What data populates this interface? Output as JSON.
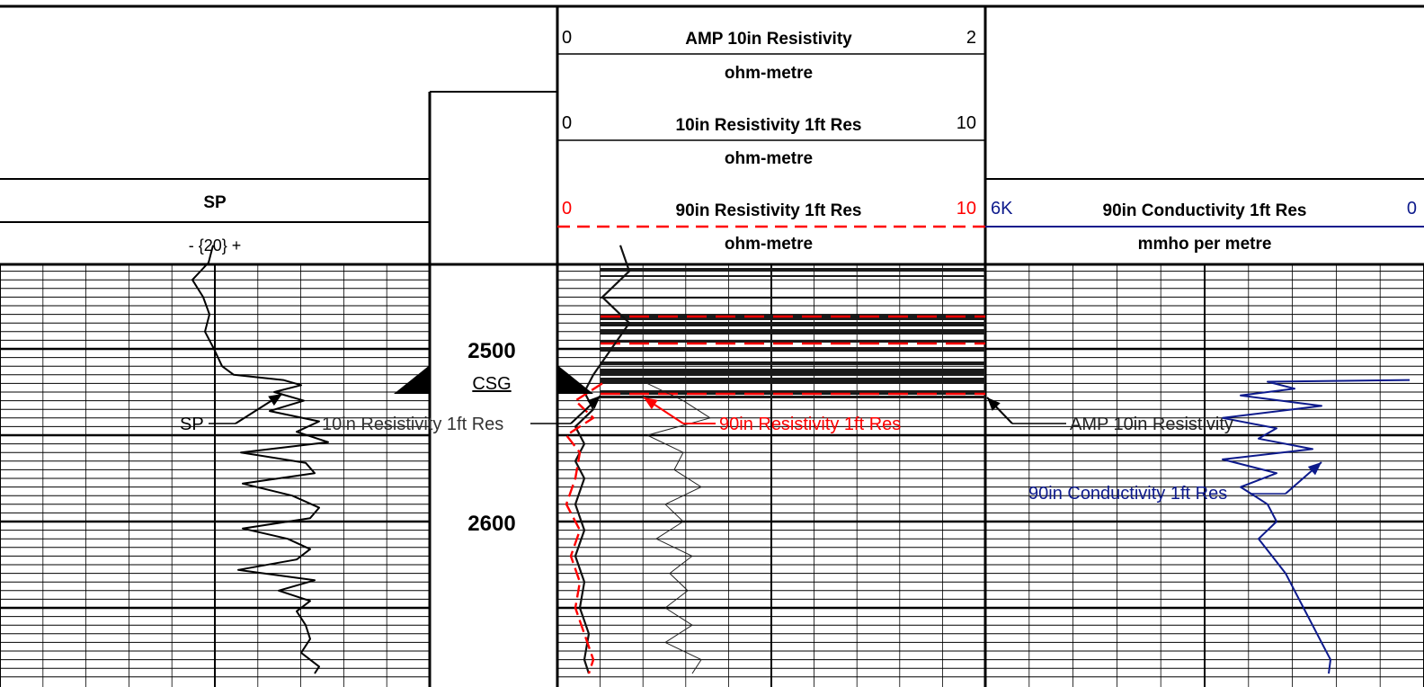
{
  "colors": {
    "black": "#000000",
    "red": "#ff0000",
    "blue": "#0d1a8c",
    "grid": "#000000"
  },
  "headers": {
    "amp10": {
      "name": "AMP 10in Resistivity",
      "left": "0",
      "right": "2",
      "unit": "ohm-metre"
    },
    "res10": {
      "name": "10in Resistivity 1ft Res",
      "left": "0",
      "right": "10",
      "unit": "ohm-metre"
    },
    "res90": {
      "name": "90in Resistivity 1ft Res",
      "left": "0",
      "right": "10",
      "unit": "ohm-metre"
    },
    "sp": {
      "name": "SP",
      "scale": "- {20} +"
    },
    "cond90": {
      "name": "90in Conductivity 1ft Res",
      "left": "6K",
      "right": "0",
      "unit": "mmho per metre"
    }
  },
  "depth_track": {
    "labels": [
      "2500",
      "2600"
    ],
    "casing": "CSG"
  },
  "annotations": {
    "sp": "SP",
    "res10": "10in Resistivity 1ft Res",
    "res90": "90in Resistivity 1ft Res",
    "amp10": "AMP 10in Resistivity",
    "cond90": "90in Conductivity 1ft Res"
  },
  "chart_data": {
    "type": "line",
    "depth_range": [
      2440,
      2688
    ],
    "depth_ticks": [
      2500,
      2600
    ],
    "series": [
      {
        "name": "SP",
        "scale": "- {20} +",
        "values": [
          [
            2440,
            237
          ],
          [
            2450,
            232
          ],
          [
            2460,
            214
          ],
          [
            2470,
            226
          ],
          [
            2480,
            233
          ],
          [
            2490,
            228
          ],
          [
            2500,
            238
          ],
          [
            2510,
            247
          ],
          [
            2515,
            260
          ],
          [
            2518,
            315
          ],
          [
            2521,
            335
          ],
          [
            2525,
            305
          ],
          [
            2530,
            338
          ],
          [
            2536,
            300
          ],
          [
            2542,
            355
          ],
          [
            2548,
            330
          ],
          [
            2554,
            365
          ],
          [
            2560,
            268
          ],
          [
            2566,
            340
          ],
          [
            2572,
            350
          ],
          [
            2578,
            270
          ],
          [
            2585,
            325
          ],
          [
            2592,
            355
          ],
          [
            2598,
            345
          ],
          [
            2604,
            270
          ],
          [
            2610,
            320
          ],
          [
            2616,
            345
          ],
          [
            2622,
            330
          ],
          [
            2628,
            265
          ],
          [
            2634,
            350
          ],
          [
            2640,
            310
          ],
          [
            2646,
            345
          ],
          [
            2652,
            330
          ],
          [
            2660,
            340
          ],
          [
            2668,
            345
          ],
          [
            2676,
            335
          ],
          [
            2684,
            355
          ],
          [
            2688,
            350
          ]
        ]
      },
      {
        "name": "10in Resistivity 1ft Res",
        "left": 0,
        "right": 10,
        "values": [
          [
            2440,
            690
          ],
          [
            2455,
            700
          ],
          [
            2470,
            670
          ],
          [
            2485,
            700
          ],
          [
            2500,
            680
          ],
          [
            2515,
            660
          ],
          [
            2525,
            650
          ],
          [
            2535,
            660
          ],
          [
            2545,
            640
          ],
          [
            2555,
            650
          ],
          [
            2565,
            640
          ],
          [
            2575,
            650
          ],
          [
            2590,
            640
          ],
          [
            2605,
            650
          ],
          [
            2620,
            640
          ],
          [
            2635,
            650
          ],
          [
            2650,
            645
          ],
          [
            2665,
            655
          ],
          [
            2680,
            650
          ],
          [
            2688,
            655
          ]
        ]
      },
      {
        "name": "90in Resistivity 1ft Res",
        "left": 0,
        "right": 10,
        "values": [
          [
            2520,
            670
          ],
          [
            2530,
            640
          ],
          [
            2540,
            660
          ],
          [
            2550,
            630
          ],
          [
            2560,
            645
          ],
          [
            2575,
            640
          ],
          [
            2590,
            630
          ],
          [
            2605,
            645
          ],
          [
            2620,
            635
          ],
          [
            2635,
            645
          ],
          [
            2650,
            640
          ],
          [
            2665,
            650
          ],
          [
            2680,
            660
          ],
          [
            2688,
            655
          ]
        ]
      },
      {
        "name": "AMP 10in Resistivity",
        "left": 0,
        "right": 2,
        "values": [
          [
            2520,
            720
          ],
          [
            2530,
            760
          ],
          [
            2540,
            790
          ],
          [
            2550,
            720
          ],
          [
            2560,
            760
          ],
          [
            2570,
            750
          ],
          [
            2580,
            780
          ],
          [
            2590,
            740
          ],
          [
            2600,
            760
          ],
          [
            2610,
            730
          ],
          [
            2620,
            770
          ],
          [
            2630,
            745
          ],
          [
            2640,
            765
          ],
          [
            2650,
            740
          ],
          [
            2660,
            770
          ],
          [
            2670,
            740
          ],
          [
            2680,
            780
          ],
          [
            2688,
            770
          ]
        ]
      },
      {
        "name": "90in Conductivity 1ft Res",
        "left": "6K",
        "right": "0",
        "values": [
          [
            2518,
            1568
          ],
          [
            2519,
            1410
          ],
          [
            2523,
            1440
          ],
          [
            2527,
            1380
          ],
          [
            2533,
            1470
          ],
          [
            2540,
            1360
          ],
          [
            2546,
            1420
          ],
          [
            2552,
            1400
          ],
          [
            2558,
            1460
          ],
          [
            2564,
            1360
          ],
          [
            2572,
            1420
          ],
          [
            2580,
            1380
          ],
          [
            2590,
            1410
          ],
          [
            2600,
            1420
          ],
          [
            2610,
            1400
          ],
          [
            2620,
            1415
          ],
          [
            2630,
            1430
          ],
          [
            2640,
            1440
          ],
          [
            2650,
            1450
          ],
          [
            2660,
            1460
          ],
          [
            2670,
            1470
          ],
          [
            2680,
            1480
          ],
          [
            2688,
            1478
          ]
        ]
      }
    ]
  }
}
